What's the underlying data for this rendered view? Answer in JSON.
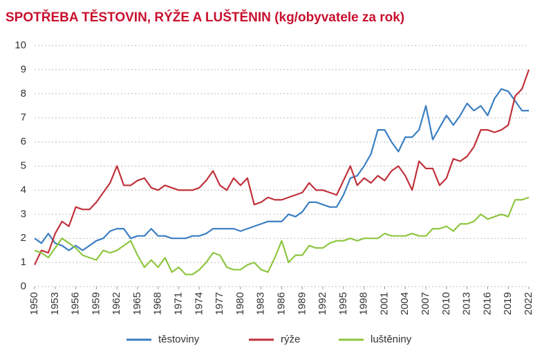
{
  "chart_data": {
    "type": "line",
    "title": "SPOTŘEBA TĚSTOVIN, RÝŽE A LUŠTĚNIN (kg/obyvatele za rok)",
    "x": [
      1950,
      1951,
      1952,
      1953,
      1954,
      1955,
      1956,
      1957,
      1958,
      1959,
      1960,
      1961,
      1962,
      1963,
      1964,
      1965,
      1966,
      1967,
      1968,
      1969,
      1970,
      1971,
      1972,
      1973,
      1974,
      1975,
      1976,
      1977,
      1978,
      1979,
      1980,
      1981,
      1982,
      1983,
      1984,
      1985,
      1986,
      1987,
      1988,
      1989,
      1990,
      1991,
      1992,
      1993,
      1994,
      1995,
      1996,
      1997,
      1998,
      1999,
      2000,
      2001,
      2002,
      2003,
      2004,
      2005,
      2006,
      2007,
      2008,
      2009,
      2010,
      2011,
      2012,
      2013,
      2014,
      2015,
      2016,
      2017,
      2018,
      2019,
      2020,
      2021,
      2022
    ],
    "series": [
      {
        "name": "těstoviny",
        "color": "#3a7ec2",
        "values": [
          2.0,
          1.8,
          2.2,
          1.8,
          1.7,
          1.5,
          1.7,
          1.5,
          1.7,
          1.9,
          2.0,
          2.3,
          2.4,
          2.4,
          2.0,
          2.1,
          2.1,
          2.4,
          2.1,
          2.1,
          2.0,
          2.0,
          2.0,
          2.1,
          2.1,
          2.2,
          2.4,
          2.4,
          2.4,
          2.4,
          2.3,
          2.4,
          2.5,
          2.6,
          2.7,
          2.7,
          2.7,
          3.0,
          2.9,
          3.1,
          3.5,
          3.5,
          3.4,
          3.3,
          3.3,
          3.8,
          4.5,
          4.6,
          5.0,
          5.5,
          6.5,
          6.5,
          6.0,
          5.6,
          6.2,
          6.2,
          6.5,
          7.5,
          6.1,
          6.6,
          7.1,
          6.7,
          7.1,
          7.6,
          7.3,
          7.5,
          7.1,
          7.8,
          8.2,
          8.1,
          7.7,
          7.3,
          7.3
        ]
      },
      {
        "name": "rýže",
        "color": "#c0303a",
        "values": [
          0.9,
          1.5,
          1.4,
          2.2,
          2.7,
          2.5,
          3.3,
          3.2,
          3.2,
          3.5,
          3.9,
          4.3,
          5.0,
          4.2,
          4.2,
          4.4,
          4.5,
          4.1,
          4.0,
          4.2,
          4.1,
          4.0,
          4.0,
          4.0,
          4.1,
          4.4,
          4.8,
          4.2,
          4.0,
          4.5,
          4.2,
          4.5,
          3.4,
          3.5,
          3.7,
          3.6,
          3.6,
          3.7,
          3.8,
          3.9,
          4.3,
          4.0,
          4.0,
          3.9,
          3.8,
          4.4,
          5.0,
          4.2,
          4.5,
          4.3,
          4.6,
          4.4,
          4.8,
          5.0,
          4.6,
          4.0,
          5.2,
          4.9,
          4.9,
          4.2,
          4.5,
          5.3,
          5.2,
          5.4,
          5.8,
          6.5,
          6.5,
          6.4,
          6.5,
          6.7,
          7.9,
          8.2,
          9.0
        ]
      },
      {
        "name": "luštěniny",
        "color": "#8dc63f",
        "values": [
          1.5,
          1.4,
          1.2,
          1.6,
          2.0,
          1.8,
          1.6,
          1.3,
          1.2,
          1.1,
          1.5,
          1.4,
          1.5,
          1.7,
          1.9,
          1.3,
          0.8,
          1.1,
          0.8,
          1.2,
          0.6,
          0.8,
          0.5,
          0.5,
          0.7,
          1.0,
          1.4,
          1.3,
          0.8,
          0.7,
          0.7,
          0.9,
          1.0,
          0.7,
          0.6,
          1.2,
          1.9,
          1.0,
          1.3,
          1.3,
          1.7,
          1.6,
          1.6,
          1.8,
          1.9,
          1.9,
          2.0,
          1.9,
          2.0,
          2.0,
          2.0,
          2.2,
          2.1,
          2.1,
          2.1,
          2.2,
          2.1,
          2.1,
          2.4,
          2.4,
          2.5,
          2.3,
          2.6,
          2.6,
          2.7,
          3.0,
          2.8,
          2.9,
          3.0,
          2.9,
          3.6,
          3.6,
          3.7
        ]
      }
    ],
    "xlim": [
      1950,
      2022
    ],
    "xticks": [
      1950,
      1953,
      1956,
      1959,
      1962,
      1965,
      1968,
      1971,
      1974,
      1977,
      1980,
      1983,
      1986,
      1989,
      1992,
      1995,
      1998,
      2001,
      2004,
      2007,
      2010,
      2013,
      2016,
      2019,
      2022
    ],
    "ylim": [
      0,
      10
    ],
    "yticks": [
      0,
      1,
      2,
      3,
      4,
      5,
      6,
      7,
      8,
      9,
      10
    ],
    "grid": true,
    "legend": "bottom"
  }
}
